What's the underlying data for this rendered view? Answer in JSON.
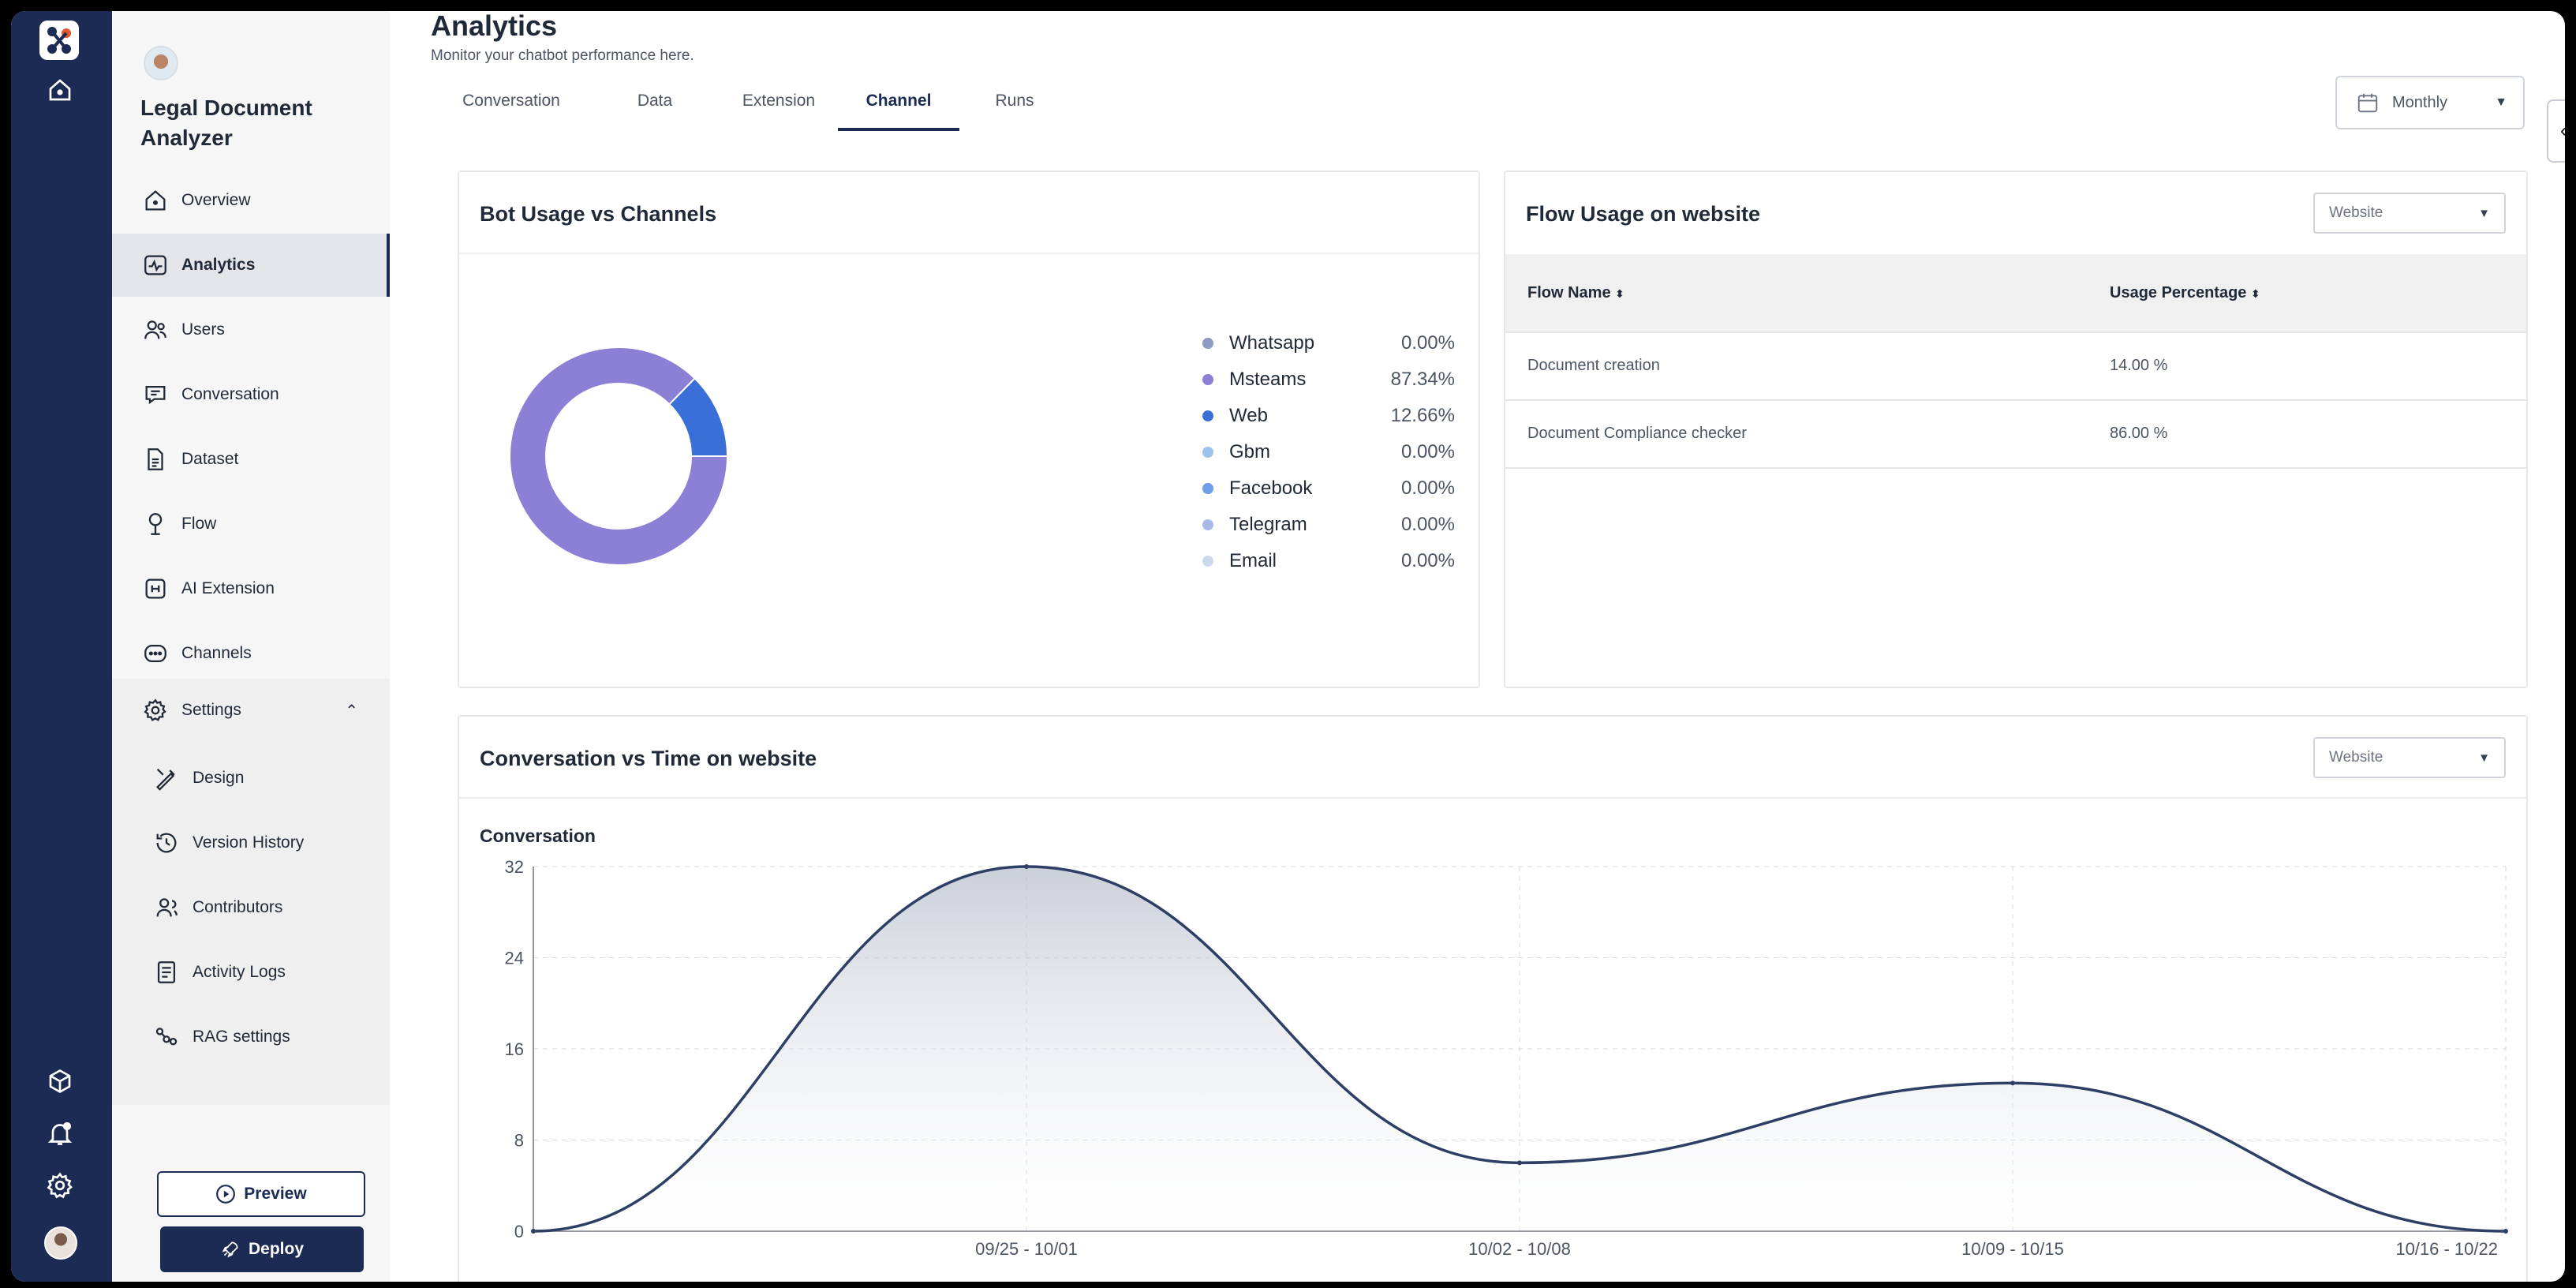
{
  "rail": {
    "icons": [
      "home-icon",
      "cube-icon",
      "bell-icon",
      "gear-icon"
    ]
  },
  "sidebar": {
    "bot_name": "Legal Document Analyzer",
    "items": [
      {
        "label": "Overview",
        "icon": "home-icon"
      },
      {
        "label": "Analytics",
        "icon": "analytics-icon",
        "active": true
      },
      {
        "label": "Users",
        "icon": "users-icon"
      },
      {
        "label": "Conversation",
        "icon": "chat-icon"
      },
      {
        "label": "Dataset",
        "icon": "dataset-icon"
      },
      {
        "label": "Flow",
        "icon": "flow-icon"
      },
      {
        "label": "AI Extension",
        "icon": "ai-extension-icon"
      },
      {
        "label": "Channels",
        "icon": "channels-icon"
      }
    ],
    "settings": {
      "label": "Settings",
      "expanded": true,
      "items": [
        {
          "label": "Design",
          "icon": "design-icon"
        },
        {
          "label": "Version History",
          "icon": "history-icon"
        },
        {
          "label": "Contributors",
          "icon": "contributors-icon"
        },
        {
          "label": "Activity Logs",
          "icon": "logs-icon"
        },
        {
          "label": "RAG settings",
          "icon": "rag-icon"
        }
      ]
    },
    "preview_label": "Preview",
    "deploy_label": "Deploy"
  },
  "header": {
    "title": "Analytics",
    "subtitle": "Monitor your chatbot performance here.",
    "tabs": [
      {
        "label": "Conversation"
      },
      {
        "label": "Data"
      },
      {
        "label": "Extension"
      },
      {
        "label": "Channel",
        "active": true
      },
      {
        "label": "Runs"
      }
    ],
    "period": "Monthly"
  },
  "bot_usage": {
    "title": "Bot Usage vs Channels",
    "legend": [
      {
        "name": "Whatsapp",
        "value": "0.00%",
        "color": "#8d9ac1"
      },
      {
        "name": "Msteams",
        "value": "87.34%",
        "color": "#8b7fd6"
      },
      {
        "name": "Web",
        "value": "12.66%",
        "color": "#3a6fd8"
      },
      {
        "name": "Gbm",
        "value": "0.00%",
        "color": "#9cc3ee"
      },
      {
        "name": "Facebook",
        "value": "0.00%",
        "color": "#6f9ee8"
      },
      {
        "name": "Telegram",
        "value": "0.00%",
        "color": "#a9b8e6"
      },
      {
        "name": "Email",
        "value": "0.00%",
        "color": "#cfd9ee"
      }
    ]
  },
  "flow_usage": {
    "title": "Flow Usage on website",
    "filter": "Website",
    "columns": [
      "Flow Name",
      "Usage Percentage"
    ],
    "rows": [
      {
        "name": "Document creation",
        "usage": "14.00 %"
      },
      {
        "name": "Document Compliance checker",
        "usage": "86.00 %"
      }
    ]
  },
  "conversation_time": {
    "title": "Conversation vs Time on website",
    "filter": "Website"
  },
  "chart_data": [
    {
      "type": "pie",
      "title": "Bot Usage vs Channels",
      "categories": [
        "Whatsapp",
        "Msteams",
        "Web",
        "Gbm",
        "Facebook",
        "Telegram",
        "Email"
      ],
      "values": [
        0.0,
        87.34,
        12.66,
        0.0,
        0.0,
        0.0,
        0.0
      ],
      "donut": true,
      "legend": "right"
    },
    {
      "type": "area",
      "title": "",
      "ylabel": "Conversation",
      "xlabel": "",
      "x": [
        "",
        "09/25 - 10/01",
        "10/02 - 10/08",
        "10/09 - 10/15",
        "10/16 - 10/22"
      ],
      "series": [
        {
          "values": [
            0,
            32,
            6,
            13,
            0
          ]
        }
      ],
      "ylim": [
        0,
        32
      ],
      "yticks": [
        0,
        8,
        16,
        24,
        32
      ],
      "grid": true,
      "smooth": true,
      "line_color": "#2e3f66"
    }
  ]
}
